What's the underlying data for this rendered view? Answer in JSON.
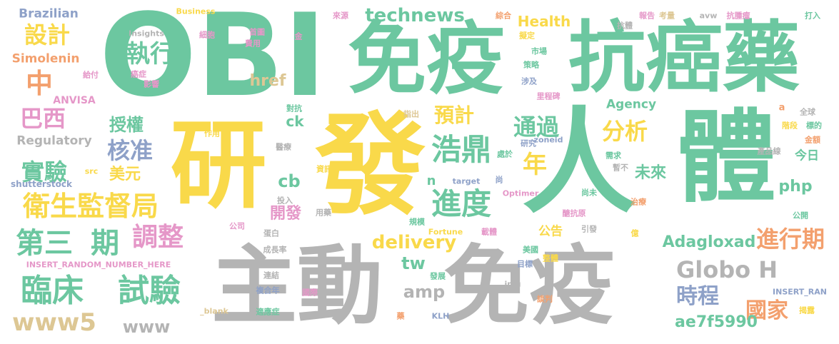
{
  "palette": {
    "green": "#6cc7a0",
    "yellow": "#f9d94a",
    "gray": "#b4b4b4",
    "orange": "#f3a06e",
    "tan": "#ddc794",
    "pink": "#e597c8",
    "blue": "#8ea1c8",
    "background": "#ffffff"
  },
  "words": [
    {
      "text": "OBI",
      "color": "green"
    },
    {
      "text": "免疫",
      "color": "green"
    },
    {
      "text": "抗癌藥",
      "color": "green"
    },
    {
      "text": "研",
      "color": "yellow"
    },
    {
      "text": "發",
      "color": "yellow"
    },
    {
      "text": "人",
      "color": "green"
    },
    {
      "text": "體",
      "color": "green"
    },
    {
      "text": "主動",
      "color": "gray"
    },
    {
      "text": "免疫",
      "color": "gray"
    },
    {
      "text": "Globo H",
      "color": "gray"
    },
    {
      "text": "臨床",
      "color": "green"
    },
    {
      "text": "試驗",
      "color": "green"
    },
    {
      "text": "第三",
      "color": "green"
    },
    {
      "text": "期",
      "color": "green"
    },
    {
      "text": "調整",
      "color": "pink"
    },
    {
      "text": "衛生監督局",
      "color": "yellow"
    },
    {
      "text": "實驗",
      "color": "green"
    },
    {
      "text": "核准",
      "color": "blue"
    },
    {
      "text": "巴西",
      "color": "pink"
    },
    {
      "text": "中",
      "color": "orange"
    },
    {
      "text": "設計",
      "color": "yellow"
    },
    {
      "text": "執行",
      "color": "green"
    },
    {
      "text": "授權",
      "color": "green"
    },
    {
      "text": "美元",
      "color": "yellow"
    },
    {
      "text": "浩鼎",
      "color": "green"
    },
    {
      "text": "進度",
      "color": "green"
    },
    {
      "text": "預計",
      "color": "yellow"
    },
    {
      "text": "通過",
      "color": "green"
    },
    {
      "text": "分析",
      "color": "yellow"
    },
    {
      "text": "年",
      "color": "yellow"
    },
    {
      "text": "進行期",
      "color": "orange"
    },
    {
      "text": "時程",
      "color": "blue"
    },
    {
      "text": "國家",
      "color": "orange"
    },
    {
      "text": "未來",
      "color": "green"
    },
    {
      "text": "開發",
      "color": "pink"
    },
    {
      "text": "technews",
      "color": "green"
    },
    {
      "text": "Health",
      "color": "yellow"
    },
    {
      "text": "delivery",
      "color": "yellow"
    },
    {
      "text": "Adagloxad",
      "color": "green"
    },
    {
      "text": "ae7f5990",
      "color": "green"
    },
    {
      "text": "www5",
      "color": "tan"
    },
    {
      "text": "www",
      "color": "gray"
    },
    {
      "text": "amp",
      "color": "gray"
    },
    {
      "text": "tw",
      "color": "green"
    },
    {
      "text": "cb",
      "color": "green"
    },
    {
      "text": "php",
      "color": "green"
    },
    {
      "text": "href",
      "color": "tan"
    },
    {
      "text": "ck",
      "color": "green"
    },
    {
      "text": "n",
      "color": "green"
    },
    {
      "text": "Agency",
      "color": "green"
    },
    {
      "text": "Brazilian",
      "color": "blue"
    },
    {
      "text": "Simolenin",
      "color": "orange"
    },
    {
      "text": "Regulatory",
      "color": "gray"
    },
    {
      "text": "ANVISA",
      "color": "pink"
    },
    {
      "text": "shutterstock",
      "color": "blue"
    },
    {
      "text": "src",
      "color": "yellow"
    },
    {
      "text": "Business",
      "color": "yellow"
    },
    {
      "text": "Insights",
      "color": "gray"
    },
    {
      "text": "細胞",
      "color": "pink"
    },
    {
      "text": "首圖",
      "color": "pink"
    },
    {
      "text": "費用",
      "color": "pink"
    },
    {
      "text": "金",
      "color": "pink"
    },
    {
      "text": "給付",
      "color": "pink"
    },
    {
      "text": "癌症",
      "color": "pink"
    },
    {
      "text": "影響",
      "color": "pink"
    },
    {
      "text": "來源",
      "color": "pink"
    },
    {
      "text": "綜合",
      "color": "orange"
    },
    {
      "text": "擬定",
      "color": "yellow"
    },
    {
      "text": "市場",
      "color": "green"
    },
    {
      "text": "策略",
      "color": "green"
    },
    {
      "text": "涉及",
      "color": "blue"
    },
    {
      "text": "里程碑",
      "color": "pink"
    },
    {
      "text": "抗體",
      "color": "gray"
    },
    {
      "text": "報告",
      "color": "pink"
    },
    {
      "text": "考量",
      "color": "tan"
    },
    {
      "text": "avw",
      "color": "gray"
    },
    {
      "text": "抗腫瘤",
      "color": "pink"
    },
    {
      "text": "打入",
      "color": "green"
    },
    {
      "text": "全球",
      "color": "gray"
    },
    {
      "text": "階段",
      "color": "yellow"
    },
    {
      "text": "標的",
      "color": "green"
    },
    {
      "text": "金額",
      "color": "orange"
    },
    {
      "text": "a",
      "color": "orange"
    },
    {
      "text": "今日",
      "color": "green"
    },
    {
      "text": "產品線",
      "color": "gray"
    },
    {
      "text": "需求",
      "color": "green"
    },
    {
      "text": "暫不",
      "color": "gray"
    },
    {
      "text": "處於",
      "color": "green"
    },
    {
      "text": "zoneid",
      "color": "blue"
    },
    {
      "text": "研究",
      "color": "blue"
    },
    {
      "text": "指出",
      "color": "tan"
    },
    {
      "text": "對抗",
      "color": "green"
    },
    {
      "text": "作用",
      "color": "yellow"
    },
    {
      "text": "醫療",
      "color": "gray"
    },
    {
      "text": "資訊",
      "color": "yellow"
    },
    {
      "text": "尚",
      "color": "blue"
    },
    {
      "text": "target",
      "color": "blue"
    },
    {
      "text": "Optimer",
      "color": "pink"
    },
    {
      "text": "尚未",
      "color": "green"
    },
    {
      "text": "治療",
      "color": "orange"
    },
    {
      "text": "投入",
      "color": "gray"
    },
    {
      "text": "用藥",
      "color": "gray"
    },
    {
      "text": "規模",
      "color": "green"
    },
    {
      "text": "醣抗原",
      "color": "pink"
    },
    {
      "text": "公開",
      "color": "green"
    },
    {
      "text": "公司",
      "color": "pink"
    },
    {
      "text": "蛋白",
      "color": "gray"
    },
    {
      "text": "成長率",
      "color": "gray"
    },
    {
      "text": "Fortune",
      "color": "yellow"
    },
    {
      "text": "載體",
      "color": "pink"
    },
    {
      "text": "公告",
      "color": "yellow"
    },
    {
      "text": "引發",
      "color": "gray"
    },
    {
      "text": "億",
      "color": "yellow"
    },
    {
      "text": "INSERT_RANDOM_NUMBER_HERE",
      "color": "pink"
    },
    {
      "text": "美國",
      "color": "green"
    },
    {
      "text": "整體",
      "color": "yellow"
    },
    {
      "text": "目標",
      "color": "blue"
    },
    {
      "text": "連結",
      "color": "gray"
    },
    {
      "text": "發展",
      "color": "green"
    },
    {
      "text": "img",
      "color": "gray"
    },
    {
      "text": "複合年",
      "color": "blue"
    },
    {
      "text": "國際",
      "color": "pink"
    },
    {
      "text": "談判",
      "color": "orange"
    },
    {
      "text": "INSERT_RAN",
      "color": "blue"
    },
    {
      "text": "_blank",
      "color": "tan"
    },
    {
      "text": "適應症",
      "color": "green"
    },
    {
      "text": "藥",
      "color": "orange"
    },
    {
      "text": "KLH",
      "color": "blue"
    },
    {
      "text": "揭露",
      "color": "yellow"
    }
  ]
}
